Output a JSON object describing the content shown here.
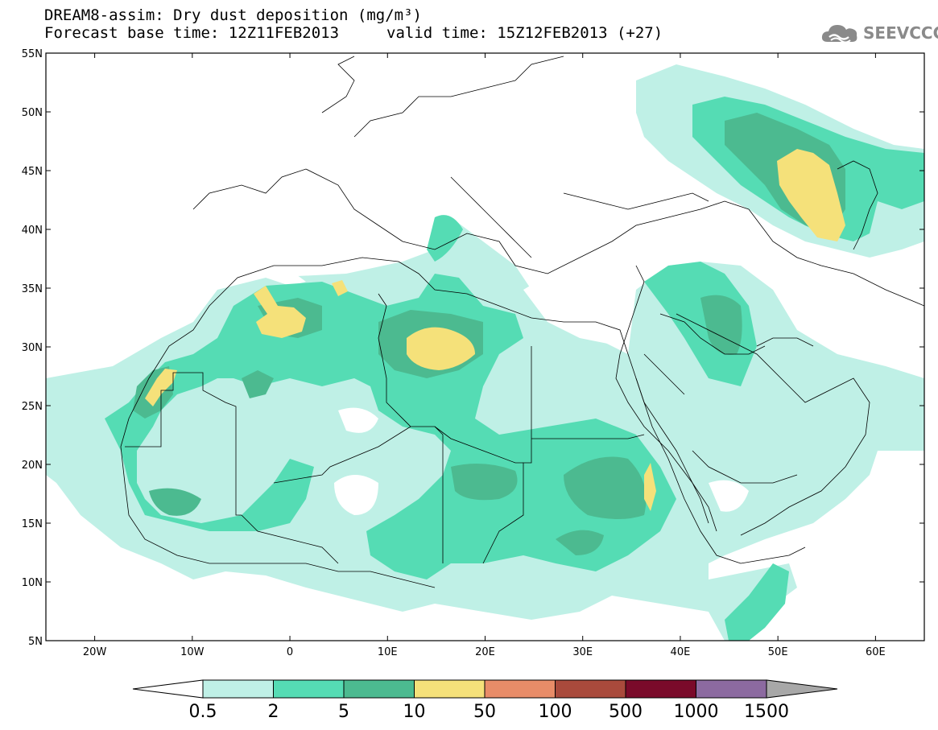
{
  "title": {
    "line1": "DREAM8-assim: Dry dust deposition (mg/m³)",
    "line2": "Forecast base time: 12Z11FEB2013",
    "valid": "valid time: 15Z12FEB2013 (+27)"
  },
  "logo": {
    "text": "SEEVCCC",
    "icon": "cloud-logo-icon"
  },
  "map": {
    "lat_labels": [
      "55N",
      "50N",
      "45N",
      "40N",
      "35N",
      "30N",
      "25N",
      "20N",
      "15N",
      "10N",
      "5N"
    ],
    "lon_labels": [
      "20W",
      "10W",
      "0",
      "10E",
      "20E",
      "30E",
      "40E",
      "50E",
      "60E"
    ],
    "lat_range": [
      5,
      55
    ],
    "lon_range": [
      -25,
      65
    ]
  },
  "colorbar": {
    "levels": [
      "0.5",
      "2",
      "5",
      "10",
      "50",
      "100",
      "500",
      "1000",
      "1500"
    ],
    "colors": [
      "#bff0e6",
      "#55dcb4",
      "#4cba90",
      "#f5e17a",
      "#e88c68",
      "#a94a3c",
      "#7a0a2a",
      "#8c6aa0",
      "#a8a8a8"
    ],
    "under_color": "#ffffff"
  }
}
